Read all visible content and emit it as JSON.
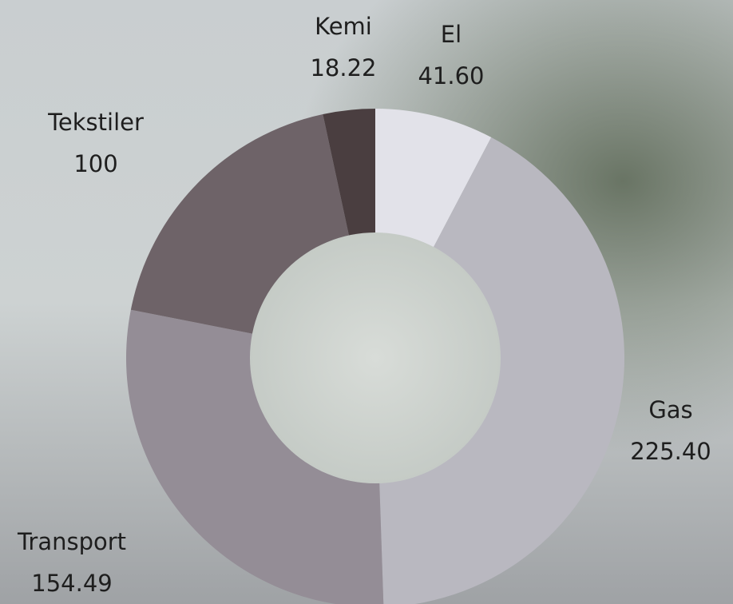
{
  "chart_data": {
    "type": "donut",
    "categories": [
      "El",
      "Gas",
      "Transport",
      "Tekstiler",
      "Kemi"
    ],
    "values": [
      41.6,
      225.4,
      154.49,
      100,
      18.22
    ],
    "value_labels": [
      "41.60",
      "225.40",
      "154.49",
      "100",
      "18.22"
    ],
    "colors": [
      "#e2e2e9",
      "#b9b8c0",
      "#948d96",
      "#6e6368",
      "#4a3e40"
    ]
  }
}
